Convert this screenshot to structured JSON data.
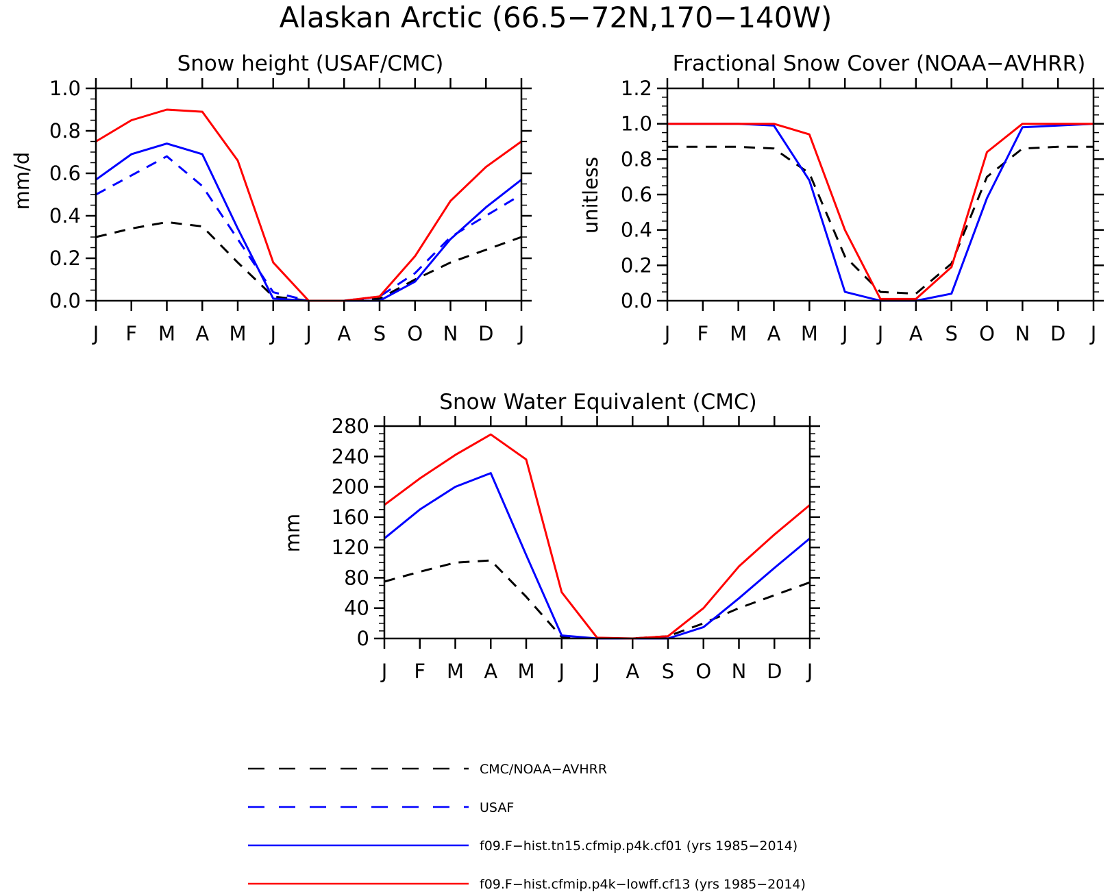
{
  "figure": {
    "title": "Alaskan Arctic (66.5−72N,170−140W)"
  },
  "colors": {
    "obs": "#000000",
    "usaf": "#0000ff",
    "cf01": "#0000ff",
    "cf13": "#ff0000"
  },
  "legend": [
    {
      "key": "obs",
      "label": "CMC/NOAA−AVHRR",
      "color": "#000000",
      "dash": true
    },
    {
      "key": "usaf",
      "label": "USAF",
      "color": "#0000ff",
      "dash": true
    },
    {
      "key": "cf01",
      "label": "f09.F−hist.tn15.cfmip.p4k.cf01 (yrs 1985−2014)",
      "color": "#0000ff",
      "dash": false
    },
    {
      "key": "cf13",
      "label": "f09.F−hist.cfmip.p4k−lowff.cf13 (yrs 1985−2014)",
      "color": "#ff0000",
      "dash": false
    }
  ],
  "chart_data": [
    {
      "type": "line",
      "title": "Snow height (USAF/CMC)",
      "xlabel": "",
      "ylabel": "mm/d",
      "categories": [
        "J",
        "F",
        "M",
        "A",
        "M",
        "J",
        "J",
        "A",
        "S",
        "O",
        "N",
        "D",
        "J"
      ],
      "ylim": [
        0,
        1.0
      ],
      "yticks": [
        "0.0",
        "0.2",
        "0.4",
        "0.6",
        "0.8",
        "1.0"
      ],
      "yminor": 0.05,
      "series": [
        {
          "key": "obs",
          "values": [
            0.3,
            0.34,
            0.37,
            0.35,
            0.18,
            0.02,
            0.0,
            0.0,
            0.01,
            0.1,
            0.18,
            0.24,
            0.3
          ]
        },
        {
          "key": "usaf",
          "values": [
            0.5,
            0.59,
            0.68,
            0.54,
            0.29,
            0.04,
            0.0,
            0.0,
            0.02,
            0.13,
            0.3,
            0.4,
            0.5
          ]
        },
        {
          "key": "cf01",
          "values": [
            0.57,
            0.69,
            0.74,
            0.69,
            0.34,
            0.01,
            0.0,
            0.0,
            0.0,
            0.09,
            0.29,
            0.44,
            0.57
          ]
        },
        {
          "key": "cf13",
          "values": [
            0.75,
            0.85,
            0.9,
            0.89,
            0.66,
            0.18,
            0.0,
            0.0,
            0.02,
            0.21,
            0.47,
            0.63,
            0.75
          ]
        }
      ]
    },
    {
      "type": "line",
      "title": "Fractional Snow Cover (NOAA−AVHRR)",
      "xlabel": "",
      "ylabel": "unitless",
      "categories": [
        "J",
        "F",
        "M",
        "A",
        "M",
        "J",
        "J",
        "A",
        "S",
        "O",
        "N",
        "D",
        "J"
      ],
      "ylim": [
        0,
        1.2
      ],
      "yticks": [
        "0.0",
        "0.2",
        "0.4",
        "0.6",
        "0.8",
        "1.0",
        "1.2"
      ],
      "yminor": 0.05,
      "series": [
        {
          "key": "obs",
          "values": [
            0.87,
            0.87,
            0.87,
            0.86,
            0.72,
            0.25,
            0.05,
            0.04,
            0.21,
            0.7,
            0.86,
            0.87,
            0.87
          ]
        },
        {
          "key": "cf01",
          "values": [
            1.0,
            1.0,
            1.0,
            0.99,
            0.68,
            0.05,
            0.0,
            0.0,
            0.04,
            0.58,
            0.98,
            0.99,
            1.0
          ]
        },
        {
          "key": "cf13",
          "values": [
            1.0,
            1.0,
            1.0,
            1.0,
            0.94,
            0.4,
            0.01,
            0.01,
            0.19,
            0.84,
            1.0,
            1.0,
            1.0
          ]
        }
      ]
    },
    {
      "type": "line",
      "title": "Snow Water Equivalent (CMC)",
      "xlabel": "",
      "ylabel": "mm",
      "categories": [
        "J",
        "F",
        "M",
        "A",
        "M",
        "J",
        "J",
        "A",
        "S",
        "O",
        "N",
        "D",
        "J"
      ],
      "ylim": [
        0,
        280
      ],
      "yticks": [
        "0",
        "40",
        "80",
        "120",
        "160",
        "200",
        "240",
        "280"
      ],
      "yminor": 10,
      "series": [
        {
          "key": "obs",
          "values": [
            75,
            88,
            100,
            103,
            55,
            2,
            0,
            0,
            3,
            20,
            40,
            57,
            74
          ]
        },
        {
          "key": "cf01",
          "values": [
            132,
            170,
            200,
            218,
            110,
            4,
            0,
            0,
            0,
            15,
            53,
            93,
            132
          ]
        },
        {
          "key": "cf13",
          "values": [
            176,
            211,
            242,
            269,
            236,
            61,
            1,
            0,
            3,
            40,
            95,
            137,
            176
          ]
        }
      ]
    }
  ]
}
